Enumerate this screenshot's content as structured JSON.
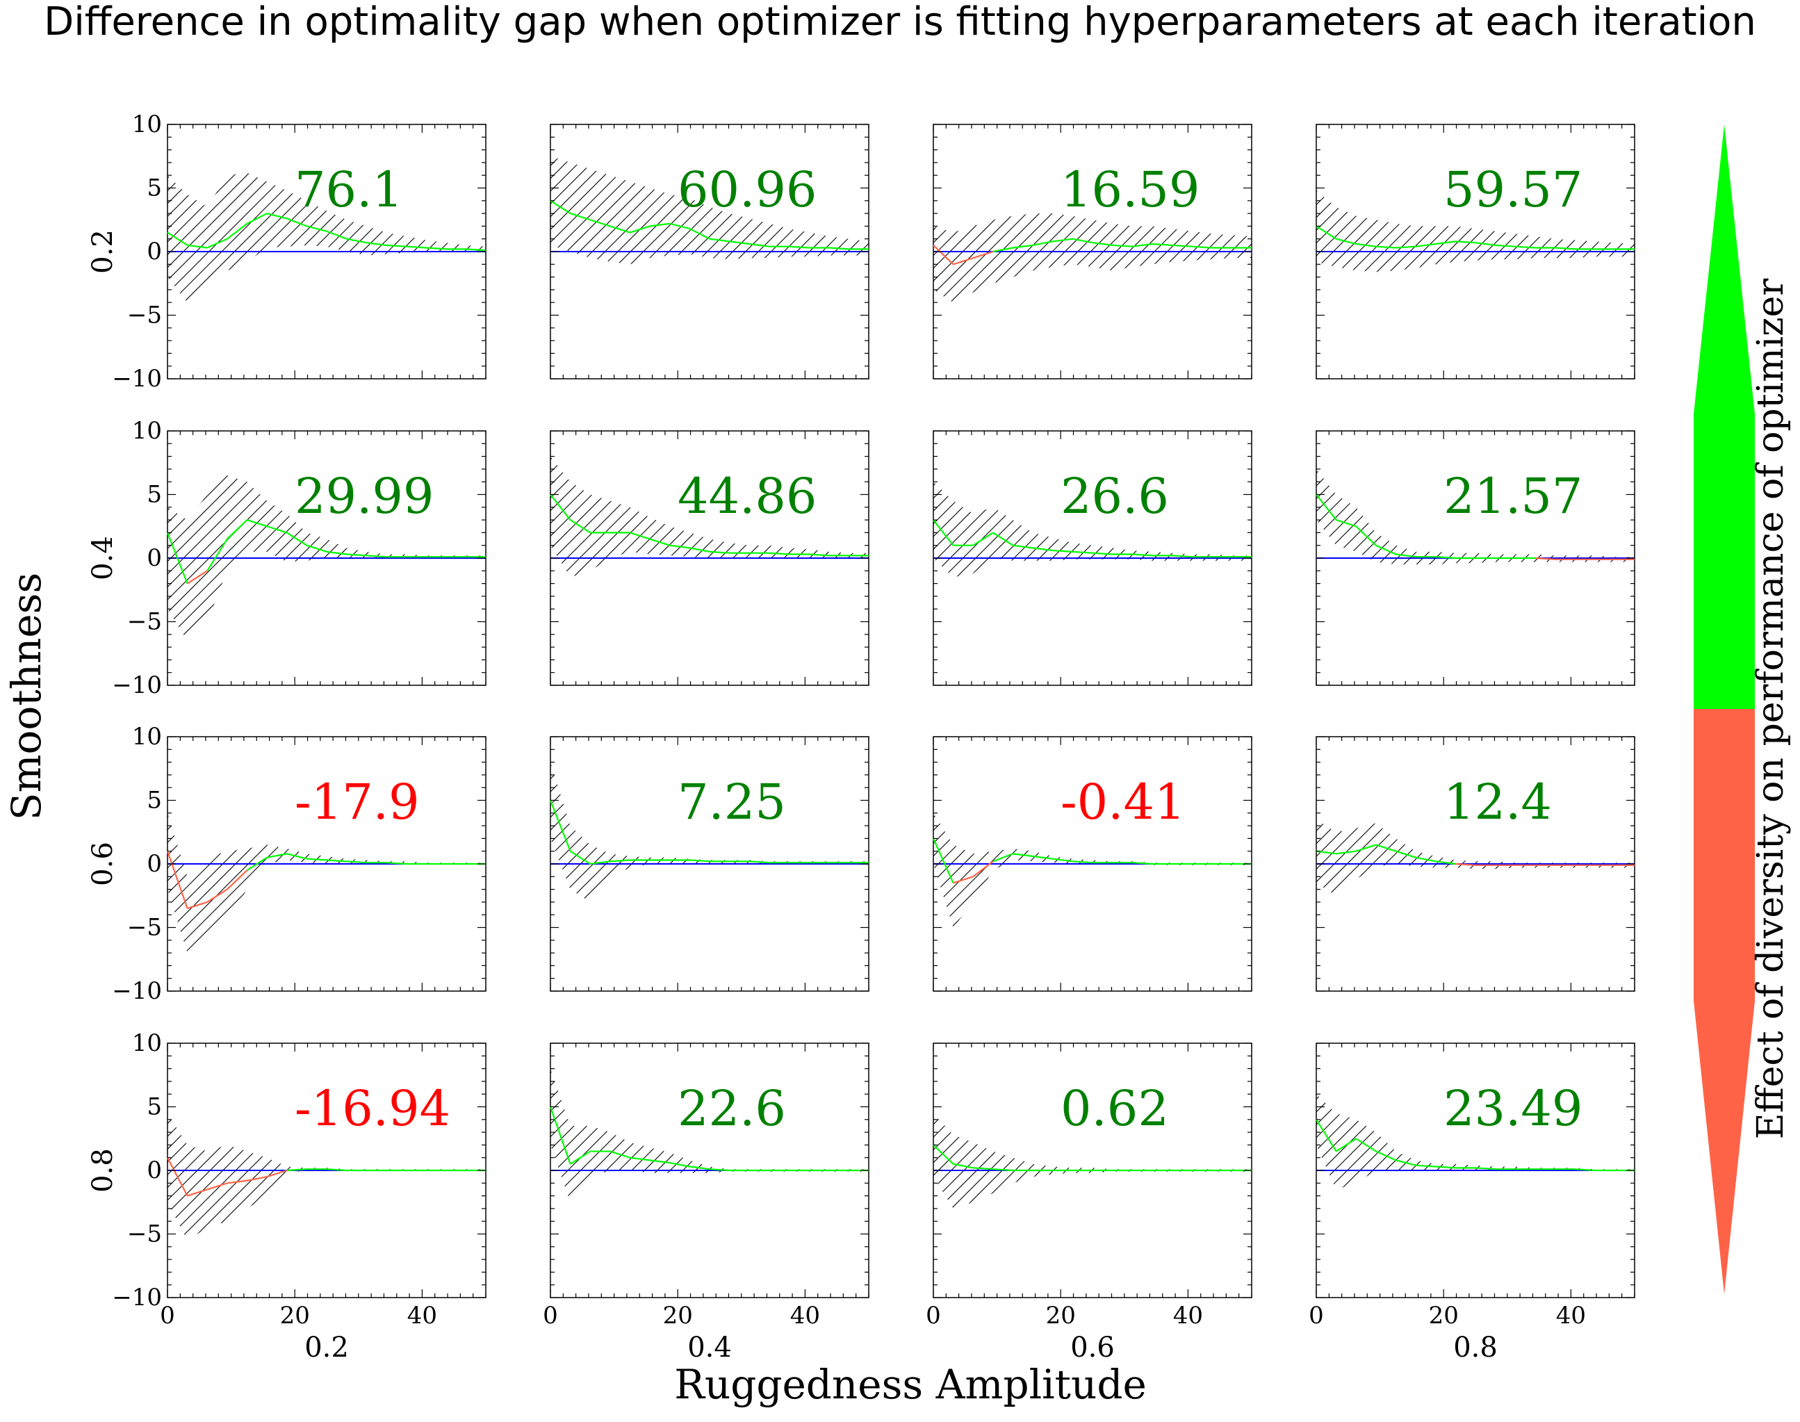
{
  "chart_data": {
    "type": "line",
    "title": "Difference in optimality gap when optimizer is fitting hyperparameters at each iteration",
    "xlabel": "Ruggedness Amplitude",
    "ylabel": "Smoothness",
    "colorbar_label": "Effect of diversity on performance of optimizer",
    "col_labels": [
      "0.2",
      "0.4",
      "0.6",
      "0.8"
    ],
    "row_labels": [
      "0.2",
      "0.4",
      "0.6",
      "0.8"
    ],
    "x_range": [
      0,
      50
    ],
    "y_range": [
      -10,
      10
    ],
    "x_ticks": [
      0,
      20,
      40
    ],
    "y_ticks": [
      -10,
      -5,
      0,
      5,
      10
    ],
    "colors": {
      "positive": "#008000",
      "negative": "#ff0000",
      "mean_line_positive": "#00ff00",
      "mean_line_negative": "#ff6347",
      "zero_line": "#0000ff",
      "hatch": "#000000",
      "colorbar_top": "#00ff00",
      "colorbar_bottom": "#ff6347"
    },
    "panels": [
      {
        "row": "0.2",
        "col": "0.2",
        "value": "76.1",
        "mean": [
          1.5,
          0.5,
          0.3,
          1.0,
          2.2,
          3.0,
          2.6,
          2.0,
          1.6,
          1.0,
          0.7,
          0.5,
          0.4,
          0.3,
          0.2,
          0.2,
          0.1
        ],
        "upper": [
          6.0,
          4.5,
          3.5,
          6.0,
          6.2,
          5.5,
          4.8,
          4.0,
          3.2,
          2.5,
          2.0,
          1.5,
          1.2,
          0.9,
          0.7,
          0.5,
          0.4
        ],
        "lower": [
          -2.0,
          -4.0,
          -3.0,
          -1.5,
          -0.8,
          0.3,
          0.4,
          0.5,
          0.4,
          0.0,
          -0.3,
          -0.2,
          -0.1,
          0.0,
          0.0,
          0.0,
          0.0
        ]
      },
      {
        "row": "0.2",
        "col": "0.4",
        "value": "60.96",
        "mean": [
          4.0,
          3.0,
          2.5,
          2.0,
          1.5,
          2.0,
          2.2,
          1.8,
          1.0,
          0.8,
          0.6,
          0.4,
          0.4,
          0.3,
          0.3,
          0.2,
          0.2
        ],
        "upper": [
          7.5,
          7.0,
          6.5,
          6.0,
          5.5,
          5.0,
          4.5,
          4.2,
          3.5,
          3.0,
          2.6,
          2.2,
          1.8,
          1.5,
          1.2,
          1.0,
          0.8
        ],
        "lower": [
          0.5,
          0.0,
          -0.5,
          -0.8,
          -1.0,
          -0.5,
          -0.3,
          -0.2,
          -0.5,
          -0.6,
          -0.5,
          -0.5,
          -0.4,
          -0.4,
          -0.3,
          -0.3,
          -0.3
        ]
      },
      {
        "row": "0.2",
        "col": "0.6",
        "value": "16.59",
        "mean": [
          0.5,
          -1.0,
          -0.5,
          0.0,
          0.3,
          0.5,
          0.8,
          1.0,
          0.7,
          0.5,
          0.4,
          0.6,
          0.5,
          0.4,
          0.3,
          0.3,
          0.3
        ],
        "upper": [
          2.0,
          1.5,
          2.0,
          2.5,
          2.8,
          3.0,
          3.0,
          2.8,
          2.5,
          2.2,
          2.0,
          2.0,
          1.8,
          1.6,
          1.4,
          1.3,
          1.2
        ],
        "lower": [
          -3.0,
          -4.0,
          -3.2,
          -2.5,
          -2.0,
          -1.5,
          -1.2,
          -1.0,
          -1.2,
          -1.5,
          -1.2,
          -1.0,
          -0.8,
          -0.7,
          -0.6,
          -0.5,
          -0.5
        ]
      },
      {
        "row": "0.2",
        "col": "0.8",
        "value": "59.57",
        "mean": [
          2.0,
          1.0,
          0.6,
          0.4,
          0.3,
          0.4,
          0.6,
          0.8,
          0.7,
          0.5,
          0.4,
          0.3,
          0.3,
          0.2,
          0.2,
          0.2,
          0.2
        ],
        "upper": [
          4.8,
          3.5,
          2.8,
          2.5,
          2.2,
          2.0,
          2.0,
          2.0,
          1.8,
          1.6,
          1.4,
          1.2,
          1.0,
          0.9,
          0.8,
          0.7,
          0.6
        ],
        "lower": [
          -0.8,
          -1.2,
          -1.5,
          -1.6,
          -1.5,
          -1.3,
          -1.0,
          -0.8,
          -0.7,
          -0.6,
          -0.6,
          -0.5,
          -0.5,
          -0.5,
          -0.4,
          -0.4,
          -0.4
        ]
      },
      {
        "row": "0.4",
        "col": "0.2",
        "value": "29.99",
        "mean": [
          2.0,
          -2.0,
          -1.0,
          1.5,
          3.0,
          2.5,
          2.0,
          1.0,
          0.5,
          0.3,
          0.2,
          0.1,
          0.1,
          0.1,
          0.1,
          0.1,
          0.1
        ],
        "upper": [
          4.0,
          3.0,
          5.0,
          6.5,
          6.0,
          4.5,
          3.5,
          2.0,
          1.5,
          0.8,
          0.5,
          0.3,
          0.3,
          0.2,
          0.2,
          0.2,
          0.2
        ],
        "lower": [
          -4.0,
          -6.5,
          -5.0,
          -1.0,
          0.5,
          0.5,
          -0.3,
          -0.2,
          0.0,
          0.0,
          0.0,
          0.0,
          0.0,
          0.0,
          0.0,
          0.0,
          0.0
        ]
      },
      {
        "row": "0.4",
        "col": "0.4",
        "value": "44.86",
        "mean": [
          5.0,
          3.0,
          2.0,
          2.0,
          2.0,
          1.5,
          1.0,
          0.8,
          0.5,
          0.4,
          0.4,
          0.4,
          0.3,
          0.3,
          0.2,
          0.2,
          0.2
        ],
        "upper": [
          8.0,
          6.0,
          5.0,
          4.5,
          4.0,
          3.2,
          2.5,
          2.0,
          1.5,
          1.2,
          1.0,
          1.0,
          0.8,
          0.7,
          0.5,
          0.4,
          0.4
        ],
        "lower": [
          1.0,
          -1.5,
          -1.0,
          0.0,
          0.5,
          0.3,
          0.2,
          0.1,
          0.0,
          0.0,
          0.0,
          0.0,
          0.0,
          0.0,
          0.0,
          0.0,
          0.0
        ]
      },
      {
        "row": "0.4",
        "col": "0.6",
        "value": "26.6",
        "mean": [
          3.0,
          1.0,
          1.0,
          2.0,
          1.0,
          0.8,
          0.6,
          0.5,
          0.4,
          0.3,
          0.3,
          0.2,
          0.2,
          0.1,
          0.1,
          0.1,
          0.1
        ],
        "upper": [
          6.0,
          4.5,
          3.5,
          4.0,
          3.0,
          2.0,
          1.6,
          1.2,
          1.0,
          0.8,
          0.6,
          0.5,
          0.4,
          0.3,
          0.3,
          0.2,
          0.2
        ],
        "lower": [
          0.0,
          -1.5,
          -1.2,
          0.0,
          -0.2,
          -0.2,
          -0.2,
          -0.1,
          -0.1,
          -0.1,
          -0.1,
          -0.2,
          -0.2,
          -0.2,
          -0.2,
          -0.2,
          -0.2
        ]
      },
      {
        "row": "0.4",
        "col": "0.8",
        "value": "21.57",
        "mean": [
          5.0,
          3.0,
          2.5,
          1.0,
          0.3,
          0.1,
          0.1,
          0.0,
          0.0,
          0.0,
          0.0,
          0.0,
          -0.1,
          -0.1,
          -0.1,
          -0.1,
          -0.1
        ],
        "upper": [
          7.0,
          5.0,
          4.0,
          2.0,
          1.0,
          0.5,
          0.5,
          0.4,
          0.4,
          0.3,
          0.3,
          0.3,
          0.2,
          0.2,
          0.2,
          0.1,
          0.1
        ],
        "lower": [
          3.0,
          1.0,
          0.5,
          -0.3,
          -0.5,
          -0.5,
          -0.5,
          -0.4,
          -0.4,
          -0.3,
          -0.3,
          -0.3,
          -0.3,
          -0.3,
          -0.3,
          -0.3,
          -0.3
        ]
      },
      {
        "row": "0.6",
        "col": "0.2",
        "value": "-17.9",
        "mean": [
          1.0,
          -3.5,
          -3.0,
          -2.0,
          -0.5,
          0.5,
          0.8,
          0.4,
          0.3,
          0.2,
          0.1,
          0.1,
          0.0,
          0.0,
          0.0,
          0.0,
          0.0
        ],
        "upper": [
          4.0,
          -1.0,
          0.5,
          1.0,
          1.2,
          1.5,
          1.2,
          0.8,
          0.6,
          0.4,
          0.3,
          0.2,
          0.2,
          0.1,
          0.1,
          0.1,
          0.1
        ],
        "lower": [
          -2.0,
          -7.0,
          -6.0,
          -4.5,
          -2.0,
          0.0,
          0.3,
          0.1,
          0.0,
          0.0,
          0.0,
          0.0,
          0.0,
          0.0,
          0.0,
          0.0,
          0.0
        ]
      },
      {
        "row": "0.6",
        "col": "0.4",
        "value": "7.25",
        "mean": [
          5.0,
          1.0,
          0.0,
          0.2,
          0.3,
          0.3,
          0.3,
          0.3,
          0.2,
          0.2,
          0.2,
          0.1,
          0.1,
          0.1,
          0.1,
          0.1,
          0.1
        ],
        "upper": [
          8.0,
          3.0,
          1.5,
          0.8,
          0.6,
          0.5,
          0.5,
          0.4,
          0.3,
          0.3,
          0.3,
          0.2,
          0.2,
          0.2,
          0.2,
          0.2,
          0.2
        ],
        "lower": [
          2.0,
          -2.0,
          -3.0,
          -1.0,
          -0.3,
          0.0,
          0.0,
          0.0,
          0.0,
          0.0,
          0.0,
          0.0,
          0.0,
          0.0,
          0.0,
          0.0,
          0.0
        ]
      },
      {
        "row": "0.6",
        "col": "0.6",
        "value": "-0.41",
        "mean": [
          2.0,
          -1.5,
          -1.0,
          0.2,
          0.8,
          0.6,
          0.4,
          0.2,
          0.1,
          0.1,
          0.1,
          0.0,
          0.0,
          0.0,
          0.0,
          0.0,
          0.0
        ],
        "upper": [
          4.0,
          1.5,
          0.8,
          1.0,
          1.2,
          1.0,
          0.6,
          0.4,
          0.3,
          0.2,
          0.2,
          0.1,
          0.1,
          0.1,
          0.1,
          0.1,
          0.1
        ],
        "lower": [
          0.0,
          -5.0,
          -3.0,
          -0.5,
          0.3,
          0.2,
          0.1,
          0.0,
          0.0,
          0.0,
          0.0,
          -0.1,
          -0.1,
          -0.1,
          -0.1,
          -0.1,
          -0.1
        ]
      },
      {
        "row": "0.6",
        "col": "0.8",
        "value": "12.4",
        "mean": [
          1.0,
          0.8,
          1.0,
          1.5,
          1.0,
          0.5,
          0.2,
          0.0,
          -0.1,
          -0.1,
          -0.1,
          -0.1,
          -0.1,
          -0.1,
          -0.1,
          -0.1,
          -0.1
        ],
        "upper": [
          3.5,
          2.5,
          2.8,
          3.2,
          2.0,
          1.0,
          0.6,
          0.3,
          0.2,
          0.2,
          0.1,
          0.1,
          0.1,
          0.1,
          0.1,
          0.1,
          0.1
        ],
        "lower": [
          -1.5,
          -2.5,
          -1.2,
          -0.2,
          0.0,
          -0.2,
          -0.3,
          -0.3,
          -0.4,
          -0.4,
          -0.3,
          -0.3,
          -0.3,
          -0.3,
          -0.3,
          -0.3,
          -0.3
        ]
      },
      {
        "row": "0.8",
        "col": "0.2",
        "value": "-16.94",
        "mean": [
          1.0,
          -2.0,
          -1.5,
          -1.0,
          -0.8,
          -0.5,
          0.0,
          0.1,
          0.1,
          0.0,
          0.0,
          0.0,
          0.0,
          0.0,
          0.0,
          0.0,
          0.0
        ],
        "upper": [
          4.5,
          2.0,
          1.5,
          2.0,
          1.5,
          1.0,
          0.3,
          0.2,
          0.2,
          0.1,
          0.1,
          0.1,
          0.1,
          0.1,
          0.1,
          0.1,
          0.1
        ],
        "lower": [
          -2.5,
          -5.5,
          -4.5,
          -4.0,
          -3.0,
          -2.0,
          -0.2,
          0.0,
          0.0,
          0.0,
          0.0,
          0.0,
          0.0,
          0.0,
          0.0,
          0.0,
          0.0
        ]
      },
      {
        "row": "0.8",
        "col": "0.4",
        "value": "22.6",
        "mean": [
          5.0,
          0.5,
          1.5,
          1.5,
          1.0,
          0.8,
          0.6,
          0.3,
          0.1,
          0.0,
          0.0,
          0.0,
          0.0,
          0.0,
          0.0,
          0.0,
          0.0
        ],
        "upper": [
          8.0,
          3.5,
          3.5,
          3.0,
          2.2,
          1.8,
          1.4,
          0.8,
          0.3,
          0.1,
          0.1,
          0.1,
          0.1,
          0.1,
          0.1,
          0.1,
          0.1
        ],
        "lower": [
          2.0,
          -2.5,
          -0.5,
          0.0,
          0.0,
          -0.2,
          -0.2,
          -0.2,
          -0.2,
          -0.1,
          -0.1,
          -0.1,
          -0.1,
          -0.1,
          -0.1,
          -0.1,
          -0.1
        ]
      },
      {
        "row": "0.8",
        "col": "0.6",
        "value": "0.62",
        "mean": [
          2.0,
          0.5,
          0.2,
          0.1,
          0.0,
          0.0,
          0.0,
          0.0,
          0.0,
          0.0,
          0.0,
          0.0,
          0.0,
          0.0,
          0.0,
          0.0,
          0.0
        ],
        "upper": [
          4.5,
          2.8,
          2.2,
          1.5,
          1.0,
          0.5,
          0.3,
          0.2,
          0.2,
          0.1,
          0.1,
          0.1,
          0.1,
          0.1,
          0.1,
          0.1,
          0.1
        ],
        "lower": [
          -0.5,
          -3.0,
          -2.5,
          -1.8,
          -1.0,
          -0.5,
          -0.3,
          -0.2,
          -0.2,
          -0.1,
          -0.1,
          -0.1,
          -0.1,
          -0.1,
          -0.1,
          -0.1,
          -0.1
        ]
      },
      {
        "row": "0.8",
        "col": "0.8",
        "value": "23.49",
        "mean": [
          4.0,
          1.5,
          2.5,
          1.5,
          0.8,
          0.4,
          0.3,
          0.2,
          0.2,
          0.1,
          0.1,
          0.1,
          0.1,
          0.1,
          0.0,
          0.0,
          0.0
        ],
        "upper": [
          6.0,
          4.5,
          4.0,
          3.0,
          1.5,
          0.8,
          0.5,
          0.5,
          0.4,
          0.3,
          0.3,
          0.2,
          0.2,
          0.2,
          0.1,
          0.1,
          0.1
        ],
        "lower": [
          2.0,
          -1.5,
          -1.0,
          0.0,
          0.0,
          0.0,
          0.0,
          0.0,
          0.0,
          0.0,
          0.0,
          0.0,
          0.0,
          0.0,
          0.0,
          0.0,
          0.0
        ]
      }
    ]
  }
}
